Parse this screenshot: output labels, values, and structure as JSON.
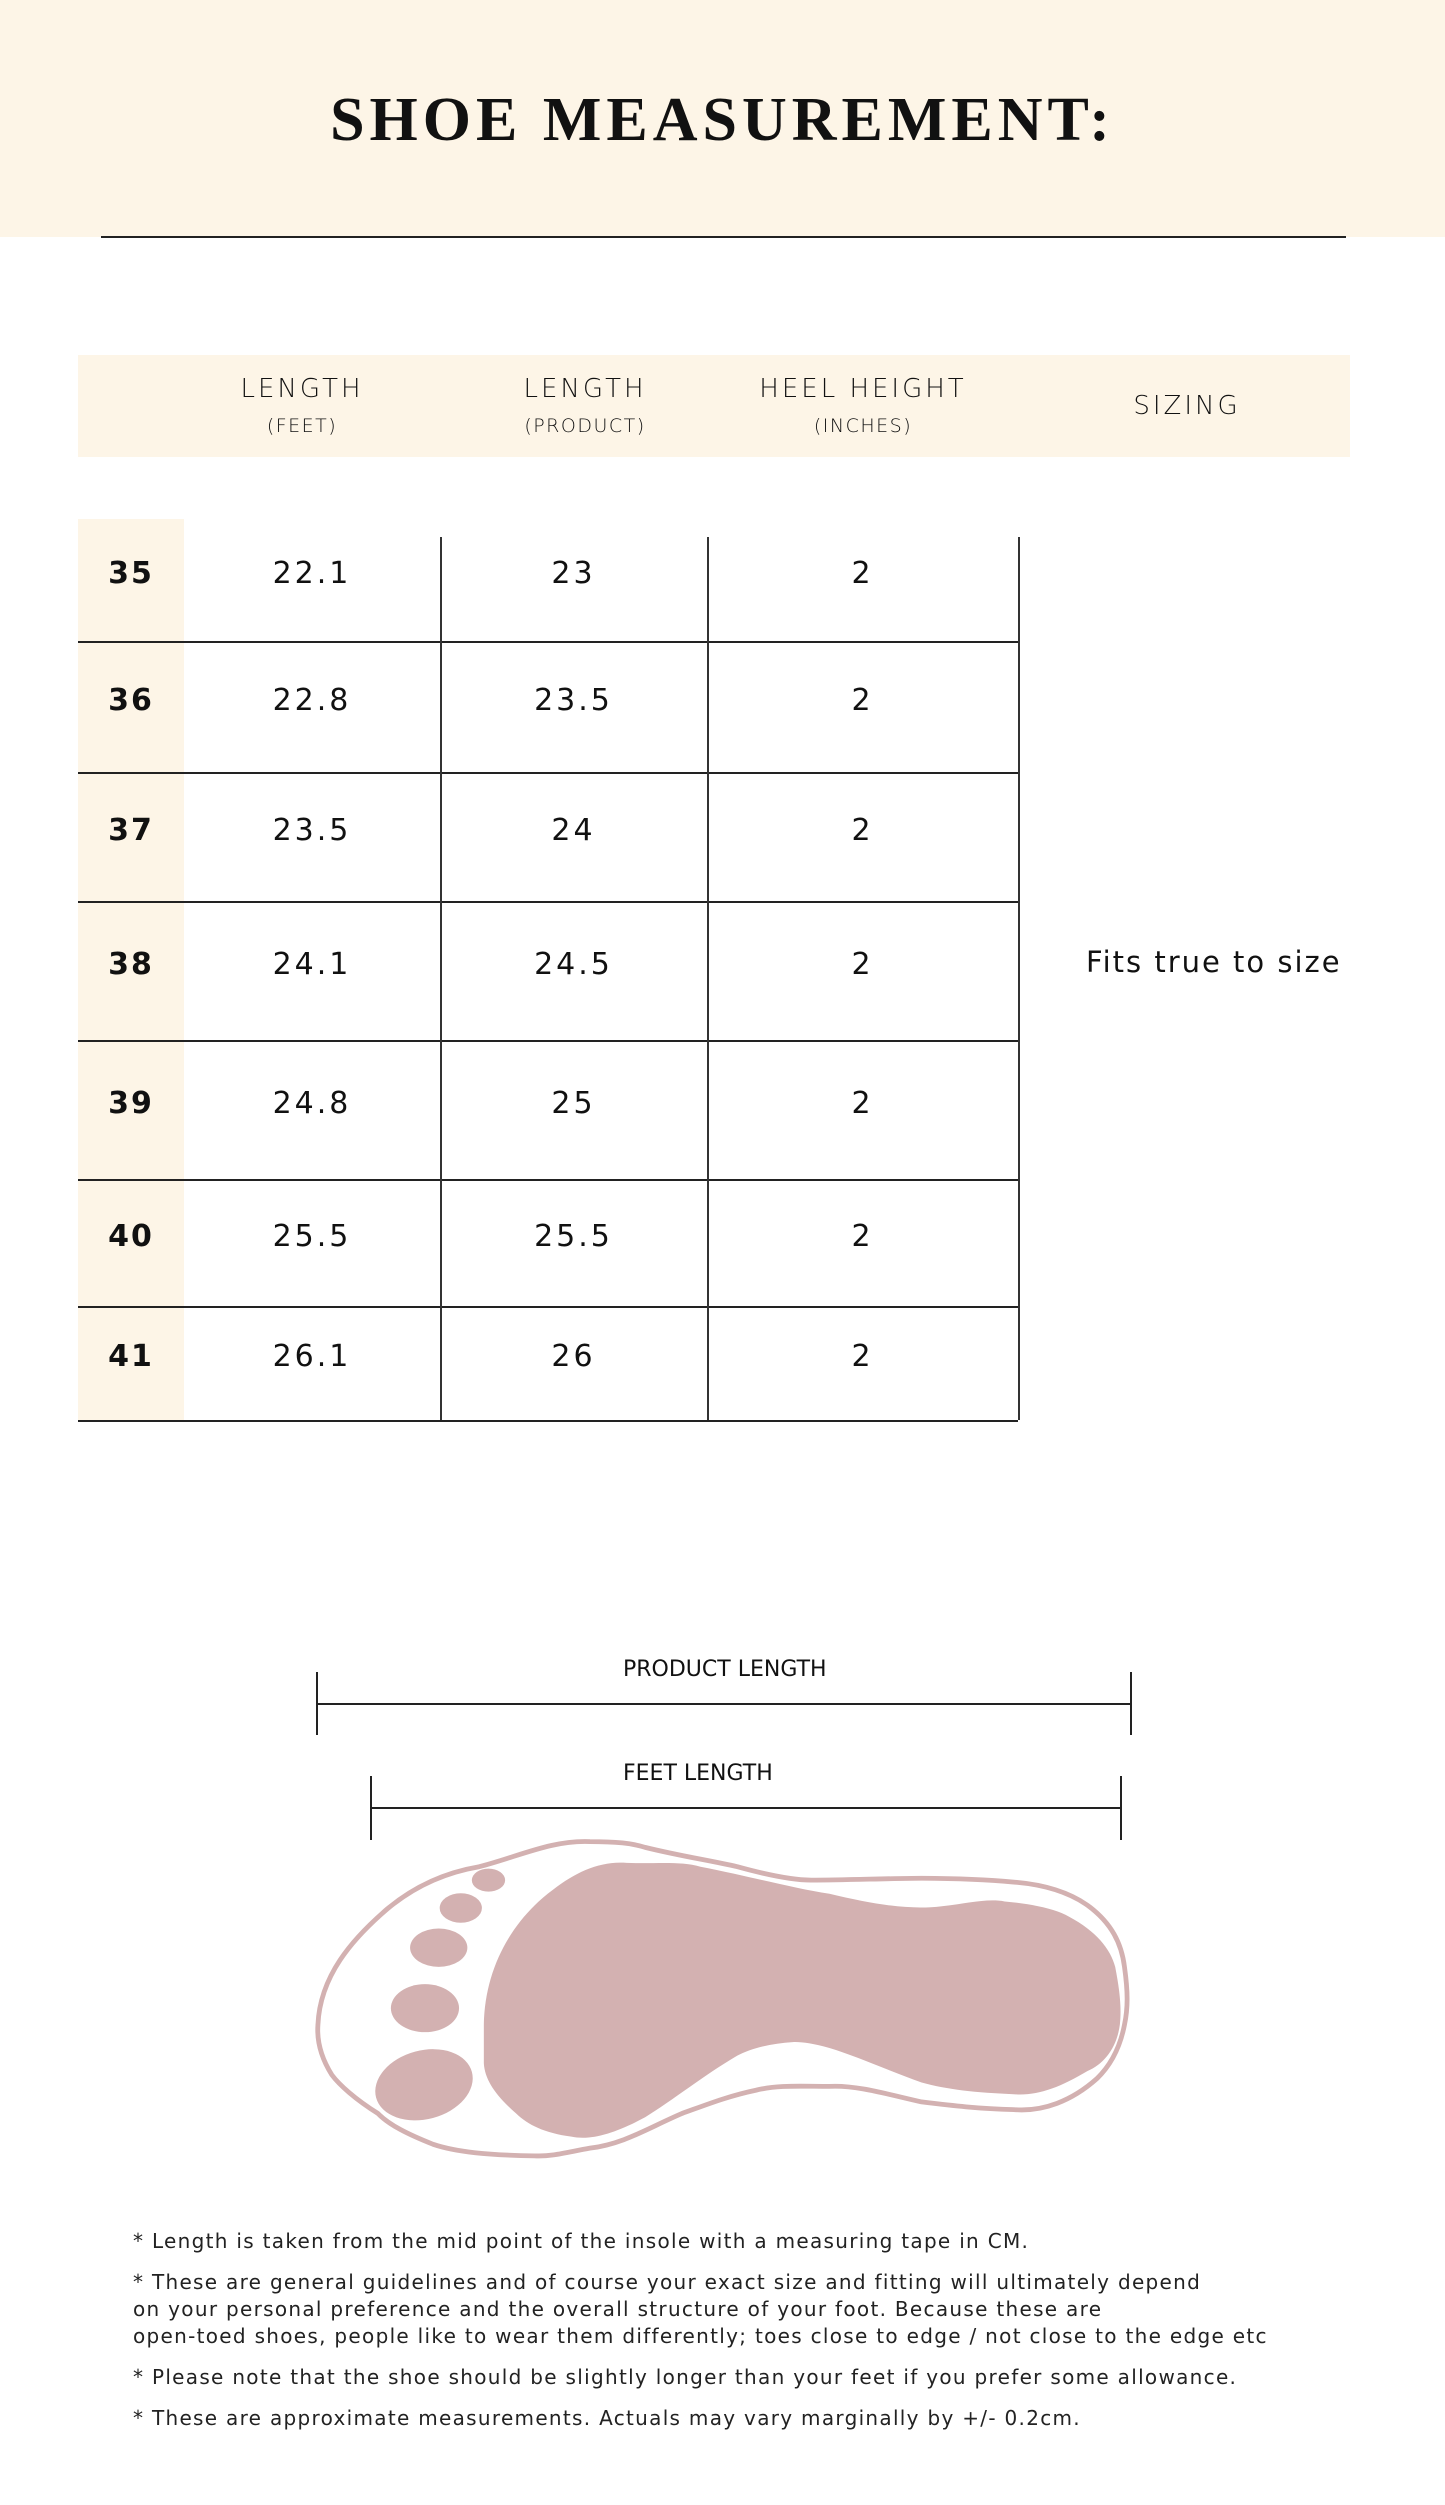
{
  "title": "SHOE MEASUREMENT:",
  "colors": {
    "cream": "#fdf5e7",
    "foot_pink": "#d3b1b1",
    "rule": "#222222"
  },
  "table": {
    "headers": [
      {
        "main": "LENGTH",
        "sub": "(FEET)"
      },
      {
        "main": "LENGTH",
        "sub": "(PRODUCT)"
      },
      {
        "main": "HEEL HEIGHT",
        "sub": "(INCHES)"
      },
      {
        "main": "SIZING",
        "sub": ""
      }
    ],
    "rows": [
      {
        "size": "35",
        "feet": "22.1",
        "product": "23",
        "heel": "2"
      },
      {
        "size": "36",
        "feet": "22.8",
        "product": "23.5",
        "heel": "2"
      },
      {
        "size": "37",
        "feet": "23.5",
        "product": "24",
        "heel": "2"
      },
      {
        "size": "38",
        "feet": "24.1",
        "product": "24.5",
        "heel": "2"
      },
      {
        "size": "39",
        "feet": "24.8",
        "product": "25",
        "heel": "2"
      },
      {
        "size": "40",
        "feet": "25.5",
        "product": "25.5",
        "heel": "2"
      },
      {
        "size": "41",
        "feet": "26.1",
        "product": "26",
        "heel": "2"
      }
    ],
    "sizing_note": "Fits true to size"
  },
  "diagram": {
    "product_length_label": "PRODUCT LENGTH",
    "feet_length_label": "FEET LENGTH",
    "icon": "footprint-in-insole-icon"
  },
  "notes": [
    "* Length is taken from the mid point of the insole with a measuring tape in CM.",
    "* These are general guidelines and of course your exact size and fitting will ultimately depend\non your personal preference and the overall structure of your foot. Because these are\nopen-toed shoes, people like to wear them differently; toes close to edge / not close to the edge etc",
    "* Please note that the shoe should be slightly longer than your feet if you prefer some allowance.",
    "* These are approximate measurements. Actuals may vary marginally by +/- 0.2cm."
  ]
}
